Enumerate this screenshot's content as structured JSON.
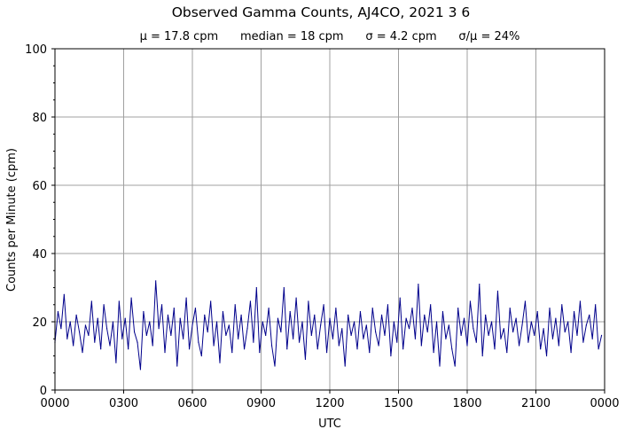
{
  "chart_data": {
    "type": "line",
    "title": "Observed Gamma Counts, AJ4CO, 2021 3 6",
    "subtitle": "μ = 17.8 cpm      median = 18 cpm      σ = 4.2 cpm      σ/μ = 24%",
    "xlabel": "UTC",
    "ylabel": "Counts per Minute (cpm)",
    "xlim_minutes": [
      0,
      1440
    ],
    "ylim": [
      0,
      100
    ],
    "x_tick_labels": [
      "0000",
      "0300",
      "0600",
      "0900",
      "1200",
      "1500",
      "1800",
      "2100",
      "0000"
    ],
    "y_tick_labels": [
      "0",
      "20",
      "40",
      "60",
      "80",
      "100"
    ],
    "grid": true,
    "line_color": "#00008b",
    "sample_interval_minutes": 8,
    "values": [
      14,
      23,
      18,
      28,
      15,
      20,
      13,
      22,
      17,
      11,
      19,
      16,
      26,
      14,
      21,
      12,
      25,
      18,
      13,
      20,
      8,
      26,
      15,
      21,
      12,
      27,
      17,
      14,
      6,
      23,
      16,
      20,
      13,
      32,
      18,
      25,
      11,
      22,
      16,
      24,
      7,
      21,
      15,
      27,
      12,
      19,
      24,
      14,
      10,
      22,
      17,
      26,
      13,
      20,
      8,
      23,
      16,
      19,
      11,
      25,
      15,
      22,
      12,
      18,
      26,
      14,
      30,
      11,
      20,
      16,
      24,
      13,
      7,
      21,
      17,
      30,
      12,
      23,
      15,
      27,
      14,
      20,
      9,
      26,
      16,
      22,
      12,
      19,
      25,
      11,
      21,
      15,
      24,
      13,
      18,
      7,
      22,
      16,
      20,
      12,
      23,
      15,
      19,
      11,
      24,
      17,
      13,
      22,
      16,
      25,
      10,
      20,
      14,
      27,
      12,
      21,
      18,
      24,
      15,
      31,
      13,
      22,
      17,
      25,
      11,
      20,
      7,
      23,
      15,
      19,
      12,
      7,
      24,
      16,
      21,
      13,
      26,
      18,
      14,
      31,
      10,
      22,
      16,
      20,
      12,
      29,
      15,
      18,
      11,
      24,
      17,
      21,
      13,
      19,
      26,
      14,
      20,
      16,
      23,
      12,
      18,
      10,
      24,
      15,
      21,
      13,
      25,
      17,
      20,
      11,
      23,
      16,
      26,
      14,
      19,
      22,
      15,
      25,
      12,
      16
    ]
  }
}
